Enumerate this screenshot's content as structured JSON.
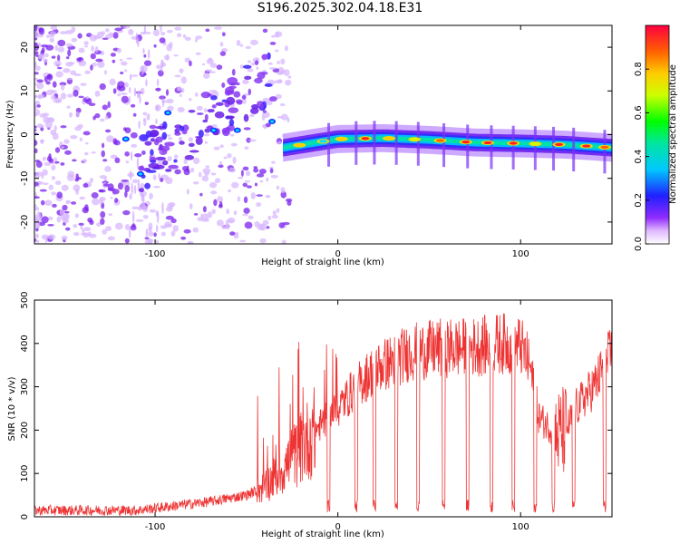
{
  "title": "S196.2025.302.04.18.E31",
  "chart_data": [
    {
      "type": "heatmap",
      "xlabel": "Height of straight line (km)",
      "ylabel": "Frequency (Hz)",
      "xlim": [
        -166,
        150
      ],
      "ylim": [
        -25,
        25
      ],
      "xticks": [
        -100,
        0,
        100
      ],
      "yticks": [
        -20,
        -10,
        0,
        10,
        20
      ],
      "colorbar": {
        "label": "Normalized spectral amplitude",
        "range": [
          0,
          1
        ],
        "ticks": [
          0.0,
          0.2,
          0.4,
          0.6,
          0.8
        ]
      },
      "ridge": {
        "description": "dominant frequency line",
        "points": [
          [
            -30,
            -3
          ],
          [
            0,
            -1
          ],
          [
            25,
            -0.8
          ],
          [
            50,
            -1.2
          ],
          [
            75,
            -1.8
          ],
          [
            100,
            -2
          ],
          [
            125,
            -2.3
          ],
          [
            150,
            -3
          ]
        ]
      }
    },
    {
      "type": "line",
      "xlabel": "Height of straight line (km)",
      "ylabel": "SNR (10 * v/v)",
      "xlim": [
        -166,
        150
      ],
      "ylim": [
        0,
        500
      ],
      "xticks": [
        -100,
        0,
        100
      ],
      "yticks": [
        0,
        100,
        200,
        300,
        400,
        500
      ],
      "color": "#ee3333",
      "trend": {
        "x": [
          -166,
          -110,
          -90,
          -70,
          -50,
          -40,
          -30,
          -20,
          -10,
          0,
          10,
          20,
          30,
          40,
          50,
          60,
          70,
          80,
          90,
          100,
          105,
          110,
          115,
          120,
          125,
          130,
          140,
          150
        ],
        "y": [
          15,
          15,
          25,
          35,
          50,
          70,
          110,
          160,
          210,
          250,
          300,
          340,
          360,
          380,
          385,
          390,
          390,
          395,
          400,
          395,
          350,
          230,
          210,
          190,
          200,
          250,
          300,
          380
        ]
      },
      "dropouts_x": [
        -5,
        10,
        20,
        32,
        44,
        58,
        71,
        84,
        96,
        108,
        118,
        129,
        146
      ]
    }
  ]
}
